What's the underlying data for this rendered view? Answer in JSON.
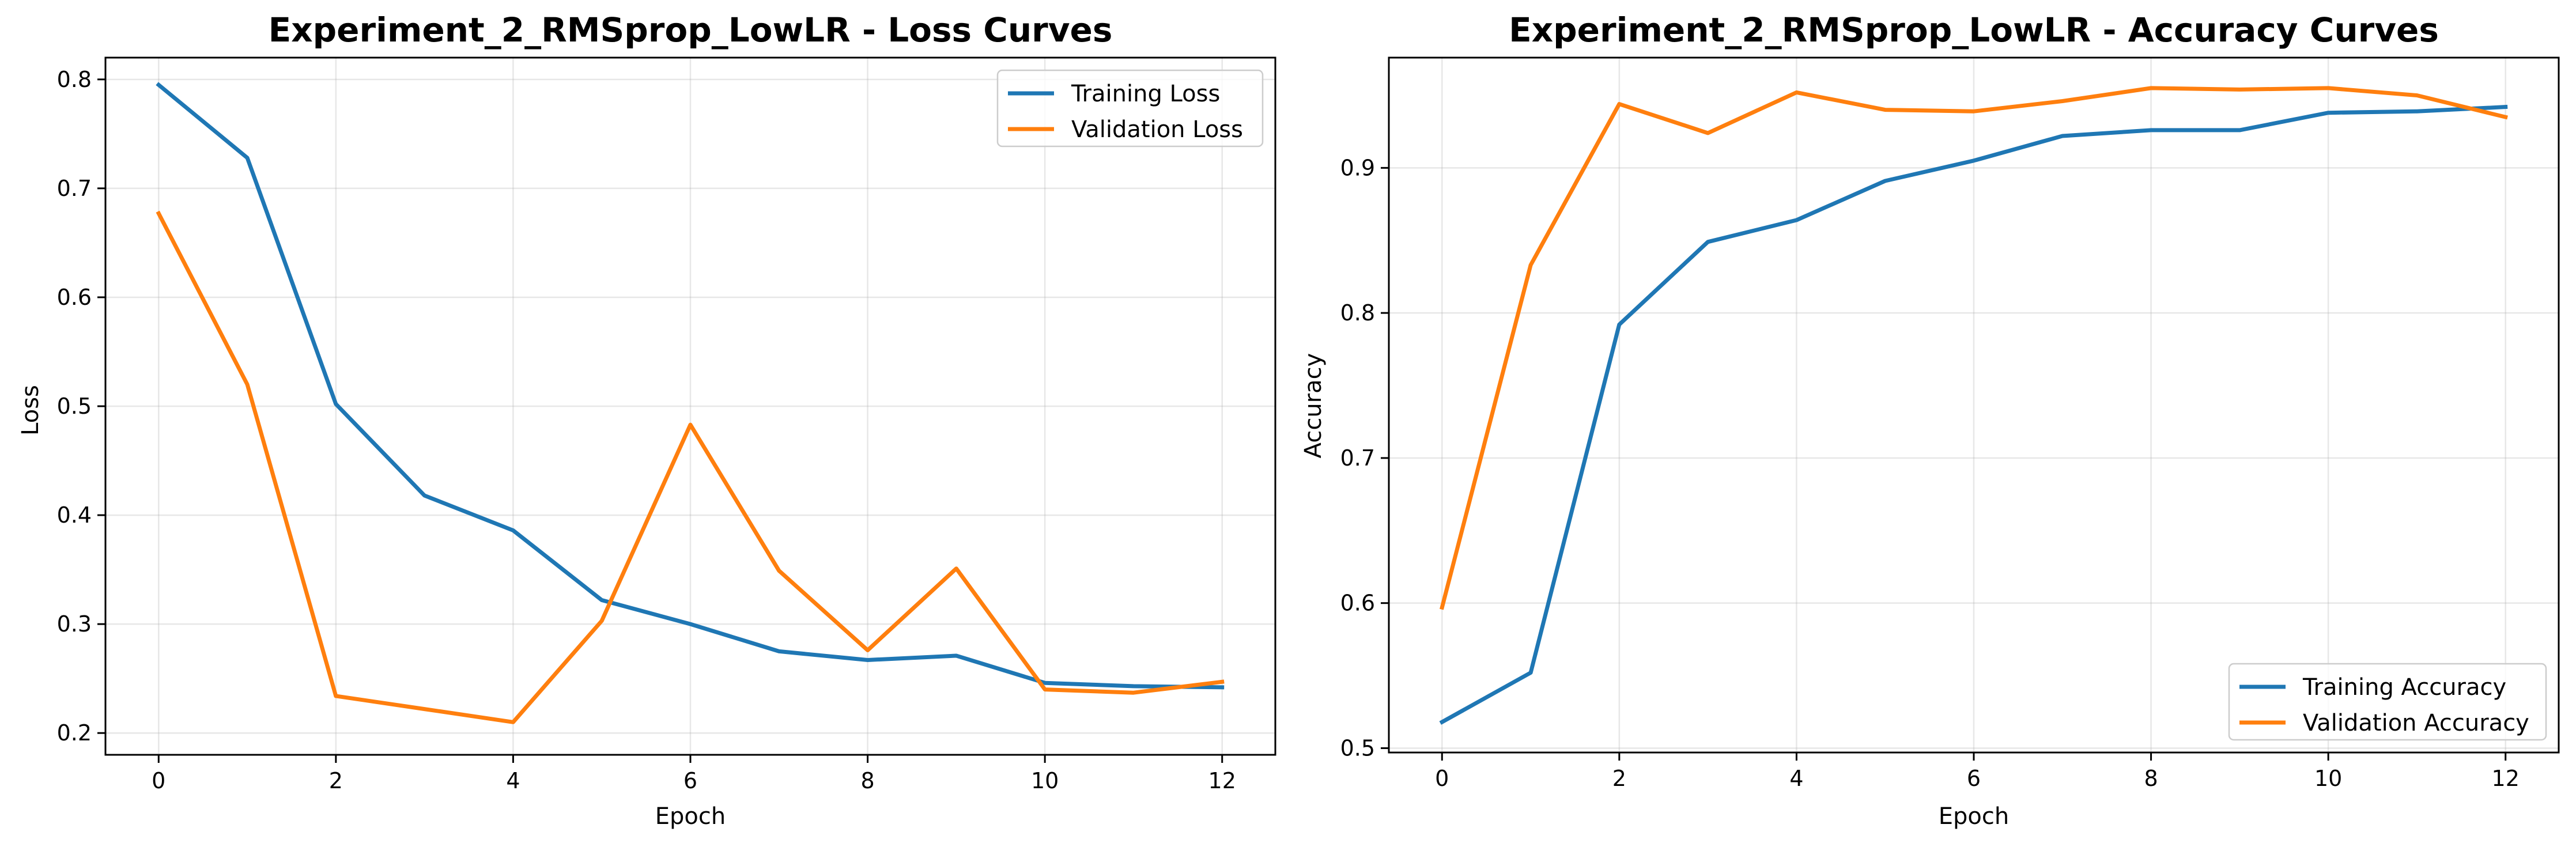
{
  "chart_data": [
    {
      "type": "line",
      "title": "Experiment_2_RMSprop_LowLR - Loss Curves",
      "xlabel": "Epoch",
      "ylabel": "Loss",
      "xlim": [
        -0.6,
        12.6
      ],
      "ylim": [
        0.18,
        0.82
      ],
      "xticks": [
        0,
        2,
        4,
        6,
        8,
        10,
        12
      ],
      "yticks": [
        0.2,
        0.3,
        0.4,
        0.5,
        0.6,
        0.7,
        0.8
      ],
      "ytick_labels": [
        "0.2",
        "0.3",
        "0.4",
        "0.5",
        "0.6",
        "0.7",
        "0.8"
      ],
      "grid": true,
      "legend_position": "top-right",
      "x": [
        0,
        1,
        2,
        3,
        4,
        5,
        6,
        7,
        8,
        9,
        10,
        11,
        12
      ],
      "series": [
        {
          "name": "Training Loss",
          "color": "#1f77b4",
          "values": [
            0.795,
            0.728,
            0.502,
            0.418,
            0.386,
            0.322,
            0.3,
            0.275,
            0.267,
            0.271,
            0.246,
            0.243,
            0.242
          ]
        },
        {
          "name": "Validation Loss",
          "color": "#ff7f0e",
          "values": [
            0.677,
            0.52,
            0.234,
            0.222,
            0.21,
            0.303,
            0.483,
            0.349,
            0.276,
            0.351,
            0.24,
            0.237,
            0.247
          ]
        }
      ]
    },
    {
      "type": "line",
      "title": "Experiment_2_RMSprop_LowLR - Accuracy Curves",
      "xlabel": "Epoch",
      "ylabel": "Accuracy",
      "xlim": [
        -0.6,
        12.6
      ],
      "ylim": [
        0.497,
        0.976
      ],
      "xticks": [
        0,
        2,
        4,
        6,
        8,
        10,
        12
      ],
      "yticks": [
        0.5,
        0.6,
        0.7,
        0.8,
        0.9
      ],
      "ytick_labels": [
        "0.5",
        "0.6",
        "0.7",
        "0.8",
        "0.9"
      ],
      "grid": true,
      "legend_position": "bottom-right",
      "x": [
        0,
        1,
        2,
        3,
        4,
        5,
        6,
        7,
        8,
        9,
        10,
        11,
        12
      ],
      "series": [
        {
          "name": "Training Accuracy",
          "color": "#1f77b4",
          "values": [
            0.518,
            0.552,
            0.792,
            0.849,
            0.864,
            0.891,
            0.905,
            0.922,
            0.926,
            0.926,
            0.938,
            0.939,
            0.942
          ]
        },
        {
          "name": "Validation Accuracy",
          "color": "#ff7f0e",
          "values": [
            0.597,
            0.833,
            0.944,
            0.924,
            0.952,
            0.94,
            0.939,
            0.946,
            0.955,
            0.954,
            0.955,
            0.95,
            0.935
          ]
        }
      ]
    }
  ]
}
